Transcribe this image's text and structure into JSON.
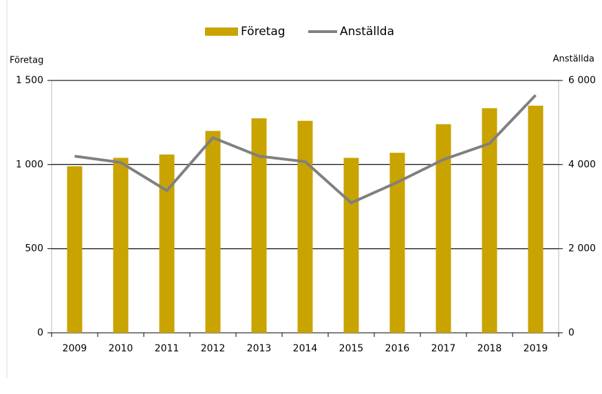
{
  "chart_data": {
    "type": "bar_line",
    "y_label": "Företag",
    "y2_label": "Anställda",
    "categories": [
      "2009",
      "2010",
      "2011",
      "2012",
      "2013",
      "2014",
      "2015",
      "2016",
      "2017",
      "2018",
      "2019"
    ],
    "series": [
      {
        "name": "Företag",
        "type": "bar",
        "color": "#c9a300",
        "values": [
          990,
          1040,
          1060,
          1200,
          1275,
          1260,
          1040,
          1070,
          1240,
          1335,
          1350
        ]
      },
      {
        "name": "Anställda",
        "type": "line",
        "axis": "y2",
        "color": "#808080",
        "values": [
          4200,
          4050,
          3380,
          4640,
          4200,
          4070,
          3090,
          3580,
          4120,
          4500,
          5650
        ]
      }
    ],
    "ylim": [
      0,
      1500
    ],
    "yticks": [
      0,
      500,
      {
        "value": 1000,
        "label": "1 000"
      },
      {
        "value": 1500,
        "label": "1 500"
      }
    ],
    "y2lim": [
      0,
      6000
    ],
    "y2ticks": [
      0,
      {
        "value": 2000,
        "label": "2 000"
      },
      {
        "value": 4000,
        "label": "4 000"
      },
      {
        "value": 6000,
        "label": "6 000"
      }
    ],
    "grid": true,
    "legend": "top"
  }
}
